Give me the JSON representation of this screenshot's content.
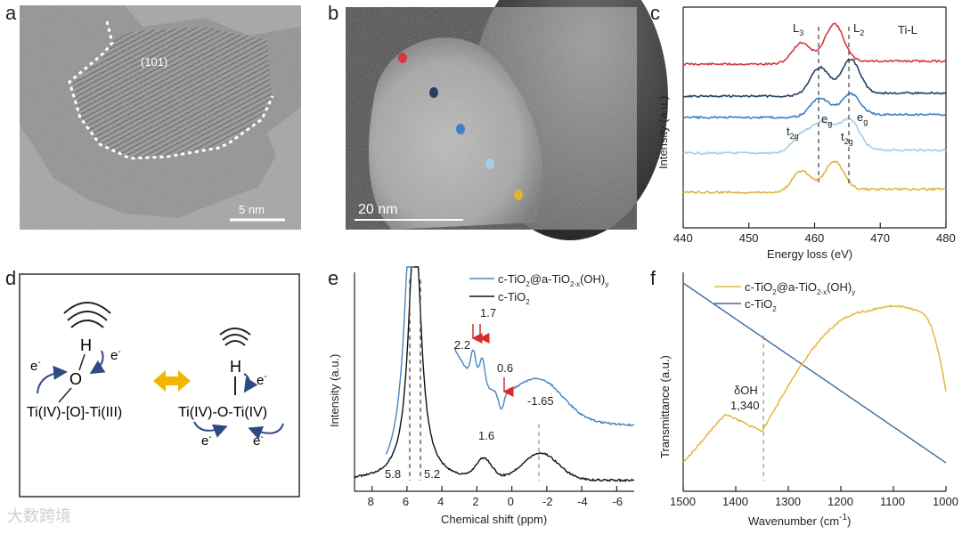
{
  "colors": {
    "red": "#d6383d",
    "navy": "#253f66",
    "blue": "#3f7fc4",
    "lightblue": "#a7cce6",
    "gold": "#e0b43a",
    "cTiO2": "#111111",
    "coated_blue": "#4a86c0",
    "ftir_gold": "#e3b83c",
    "ftir_blue": "#3f6a99",
    "arrow_red": "#d62c2c",
    "arrow_navy": "#2f4a83",
    "double_arrow": "#f5b400"
  },
  "panels": {
    "a": {
      "letter": "a",
      "label_101": "(101)",
      "scale": "5 nm"
    },
    "b": {
      "letter": "b",
      "scale": "20 nm"
    },
    "c": {
      "letter": "c",
      "title": "Ti-L",
      "L3": "L",
      "L3_sub": "3",
      "L2": "L",
      "L2_sub": "2",
      "eg": "e",
      "eg_sub": "g",
      "t2g": "t",
      "t2g_sub": "2g"
    },
    "d": {
      "letter": "d",
      "H": "H",
      "O": "O",
      "e1": "e",
      "e_sup": "-",
      "left_formula": "Ti(IV)-[O]-Ti(III)",
      "right_formula": "Ti(IV)-O-Ti(IV)"
    },
    "e": {
      "letter": "e",
      "peak_22": "2.2",
      "peak_17": "1.7",
      "peak_06": "0.6",
      "peak_165": "-1.65",
      "peak_16": "1.6",
      "line_58": "5.8",
      "line_52": "5.2"
    },
    "f": {
      "letter": "f",
      "dOH": "δOH",
      "dOH_value": "1,340"
    }
  },
  "watermark": "大数跨境",
  "chart_data": [
    {
      "type": "line",
      "panel": "c",
      "title": "Ti-L",
      "xlabel": "Energy loss (eV)",
      "ylabel": "Intensity (a.u.)",
      "xlim": [
        440,
        480
      ],
      "xticks": [
        "440",
        "450",
        "460",
        "470",
        "480"
      ],
      "dashed_lines_x": [
        460.8,
        465.5
      ],
      "series": [
        {
          "name": "red",
          "offset": 4,
          "peaks": [
            [
              458.0,
              0.55
            ],
            [
              463.0,
              1.0
            ]
          ]
        },
        {
          "name": "navy",
          "offset": 3,
          "peaks": [
            [
              460.8,
              0.7
            ],
            [
              465.5,
              0.9
            ]
          ]
        },
        {
          "name": "blue",
          "offset": 2,
          "peaks": [
            [
              460.8,
              0.45
            ],
            [
              465.5,
              0.55
            ]
          ]
        },
        {
          "name": "lightblue",
          "offset": 1,
          "peaks": [
            [
              458.0,
              0.45
            ],
            [
              460.8,
              0.6
            ],
            [
              463.0,
              0.35
            ],
            [
              465.5,
              0.75
            ]
          ]
        },
        {
          "name": "gold",
          "offset": 0,
          "peaks": [
            [
              458.0,
              0.55
            ],
            [
              463.0,
              0.75
            ]
          ]
        }
      ]
    },
    {
      "type": "line",
      "panel": "e",
      "xlabel": "Chemical shift (ppm)",
      "ylabel": "Intensity (a.u.)",
      "xlim": [
        9,
        -7
      ],
      "xticks": [
        "8",
        "6",
        "4",
        "2",
        "0",
        "-2",
        "-4",
        "-6"
      ],
      "legend": [
        {
          "label": "c-TiO",
          "sub": "2",
          "mid": "@a-TiO",
          "sub2": "2-x",
          "tail": "(OH)",
          "sub3": "y"
        },
        {
          "label": "c-TiO",
          "sub": "2"
        }
      ],
      "dashed_lines_x": [
        5.8,
        5.2,
        -1.65
      ],
      "series": [
        {
          "name": "c-TiO2@a-TiO2-x(OH)y",
          "peaks_ppm": [
            2.2,
            1.7,
            0.6,
            -1.65
          ]
        },
        {
          "name": "c-TiO2",
          "peaks_ppm": [
            1.6,
            -1.65
          ]
        }
      ]
    },
    {
      "type": "line",
      "panel": "f",
      "xlabel": "Wavenumber (cm",
      "xlabel_sup": "-1",
      "xlabel_tail": ")",
      "ylabel": "Transmittance (a.u.)",
      "xlim": [
        1500,
        1000
      ],
      "xticks": [
        "1500",
        "1400",
        "1300",
        "1200",
        "1100",
        "1000"
      ],
      "legend": [
        {
          "label": "c-TiO",
          "sub": "2",
          "mid": "@a-TiO",
          "sub2": "2-x",
          "tail": "(OH)",
          "sub3": "y"
        },
        {
          "label": "c-TiO",
          "sub": "2"
        }
      ],
      "dashed_lines_x": [
        1350
      ],
      "annotation": {
        "text": "δOH",
        "value": "1,340"
      }
    }
  ]
}
